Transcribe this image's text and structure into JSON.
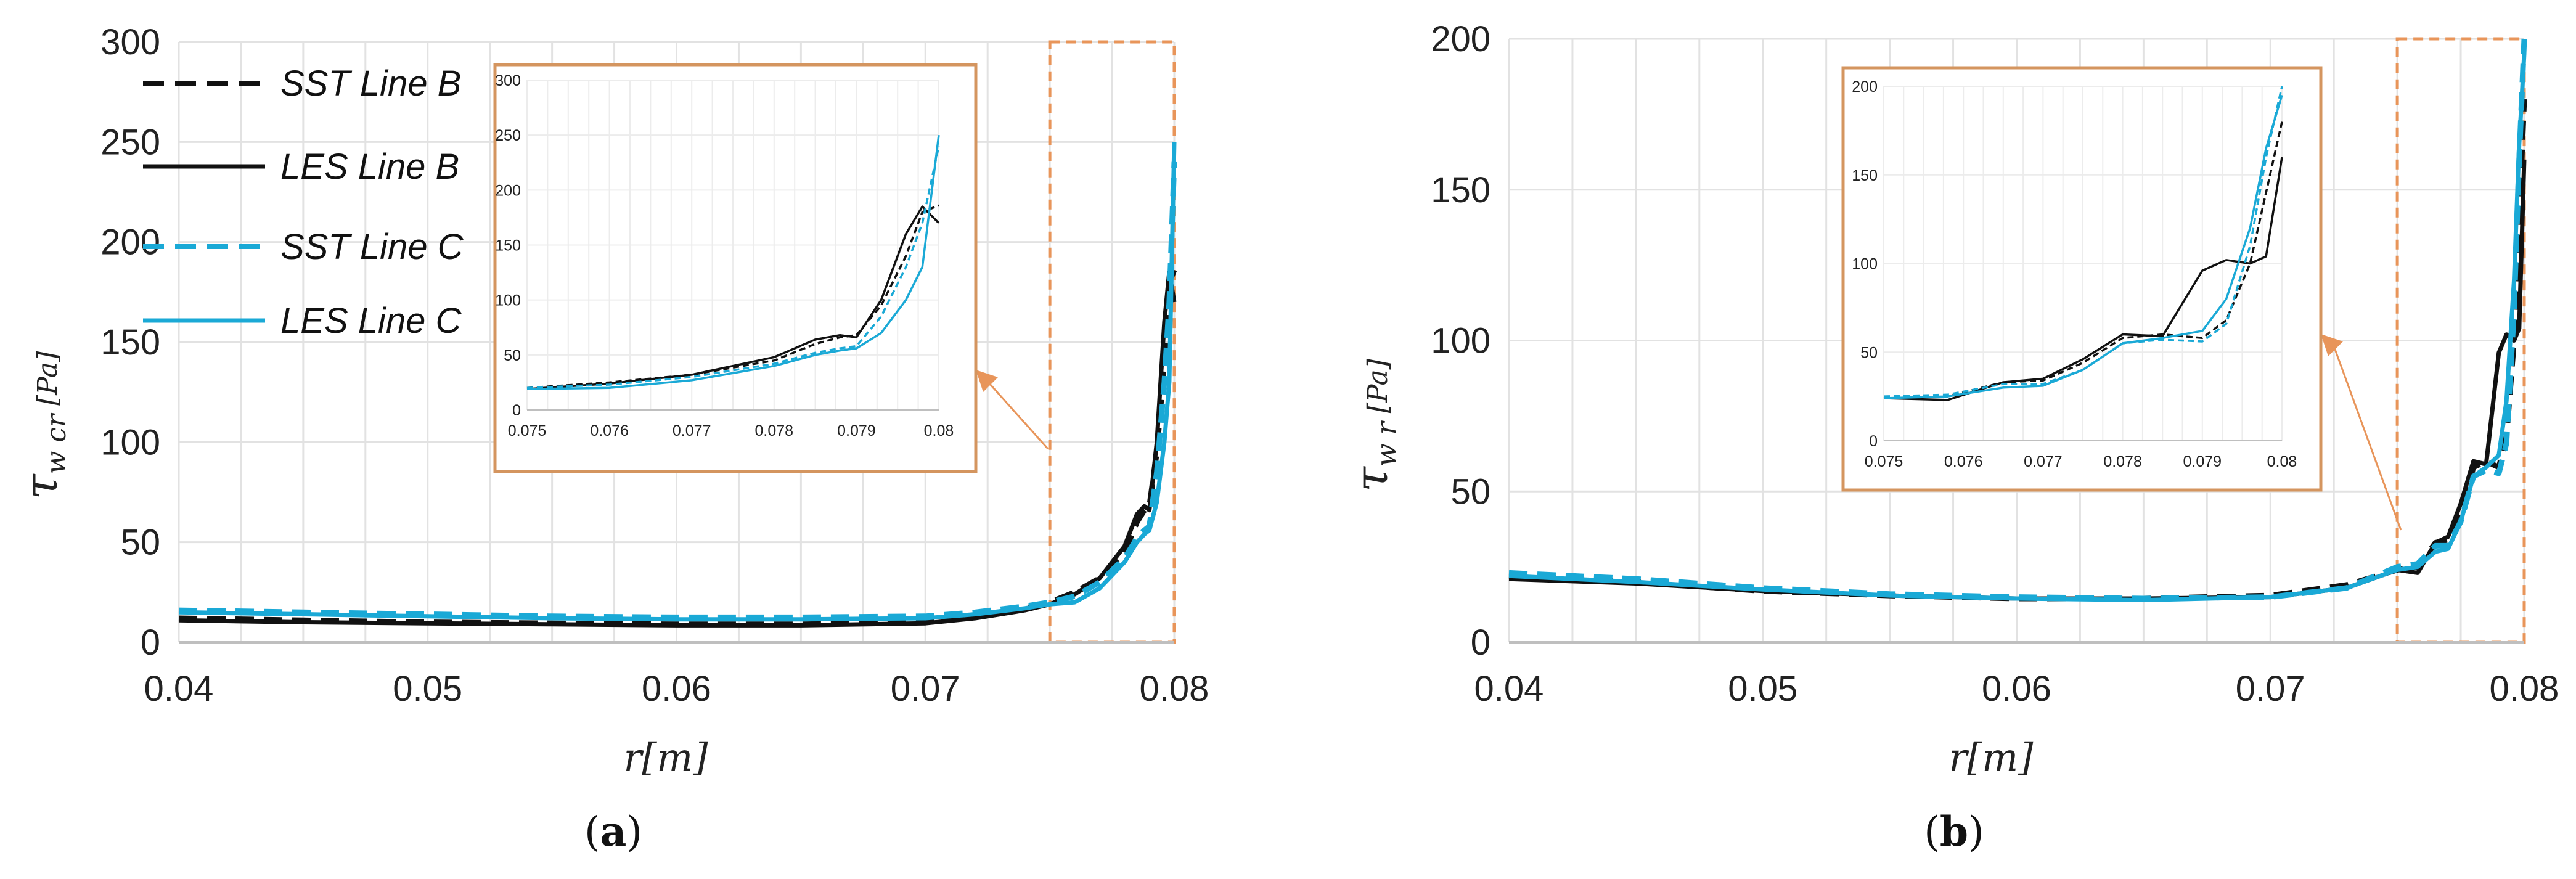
{
  "chart_data": [
    {
      "type": "line",
      "panel_label": "a",
      "xlabel": "r[m]",
      "ylabel": "τ",
      "ylabel_sub": "w cr",
      "ylabel_unit": "[Pa]",
      "xlim": [
        0.04,
        0.08
      ],
      "ylim": [
        0,
        300
      ],
      "x_ticks": [
        "0.04",
        "0.05",
        "0.06",
        "0.07",
        "0.08"
      ],
      "y_ticks": [
        "0",
        "50",
        "100",
        "150",
        "200",
        "250",
        "300"
      ],
      "grid": true,
      "legend_position": "top-left",
      "zoom_region": {
        "x": [
          0.075,
          0.08
        ],
        "y": [
          0,
          300
        ]
      },
      "series": [
        {
          "name": "SST Line B",
          "color": "#111111",
          "dash": "dashed",
          "x": [
            0.04,
            0.045,
            0.05,
            0.055,
            0.06,
            0.065,
            0.07,
            0.072,
            0.074,
            0.075,
            0.076,
            0.077,
            0.078,
            0.0785,
            0.0788,
            0.079,
            0.0793,
            0.0796,
            0.0798,
            0.08
          ],
          "y": [
            12,
            11,
            10,
            9.5,
            9,
            9,
            10,
            13,
            17,
            20,
            25,
            32,
            45,
            60,
            66,
            68,
            95,
            140,
            180,
            186
          ]
        },
        {
          "name": "LES Line B",
          "color": "#111111",
          "dash": "solid",
          "x": [
            0.04,
            0.045,
            0.05,
            0.055,
            0.06,
            0.065,
            0.07,
            0.072,
            0.074,
            0.075,
            0.076,
            0.077,
            0.078,
            0.0785,
            0.0788,
            0.079,
            0.0793,
            0.0796,
            0.0798,
            0.08
          ],
          "y": [
            11,
            10,
            9.5,
            9,
            8.5,
            8.5,
            9.5,
            12,
            16,
            19,
            24,
            32,
            48,
            64,
            68,
            66,
            100,
            160,
            185,
            170
          ]
        },
        {
          "name": "SST Line C",
          "color": "#1aa9d6",
          "dash": "dashed",
          "x": [
            0.04,
            0.045,
            0.05,
            0.055,
            0.06,
            0.065,
            0.07,
            0.072,
            0.074,
            0.075,
            0.076,
            0.077,
            0.078,
            0.0785,
            0.0788,
            0.079,
            0.0793,
            0.0796,
            0.0798,
            0.08
          ],
          "y": [
            16,
            15,
            14,
            13,
            12.5,
            12.5,
            13,
            15,
            18,
            20,
            23,
            30,
            42,
            52,
            56,
            58,
            85,
            130,
            170,
            240
          ]
        },
        {
          "name": "LES Line C",
          "color": "#1aa9d6",
          "dash": "solid",
          "x": [
            0.04,
            0.045,
            0.05,
            0.055,
            0.06,
            0.065,
            0.07,
            0.072,
            0.074,
            0.075,
            0.076,
            0.077,
            0.078,
            0.0785,
            0.0788,
            0.079,
            0.0793,
            0.0796,
            0.0798,
            0.08
          ],
          "y": [
            15,
            14,
            13,
            12,
            11.5,
            11.5,
            12,
            14,
            17,
            19,
            20,
            27,
            40,
            50,
            54,
            56,
            70,
            100,
            130,
            250
          ]
        }
      ],
      "inset": {
        "xlim": [
          0.075,
          0.08
        ],
        "ylim": [
          0,
          300
        ],
        "x_ticks": [
          "0.075",
          "0.076",
          "0.077",
          "0.078",
          "0.079",
          "0.08"
        ],
        "y_ticks": [
          "0",
          "50",
          "100",
          "150",
          "200",
          "250",
          "300"
        ]
      }
    },
    {
      "type": "line",
      "panel_label": "b",
      "xlabel": "r[m]",
      "ylabel": "τ",
      "ylabel_sub": "w r",
      "ylabel_unit": "[Pa]",
      "xlim": [
        0.04,
        0.08
      ],
      "ylim": [
        0,
        200
      ],
      "x_ticks": [
        "0.04",
        "0.05",
        "0.06",
        "0.07",
        "0.08"
      ],
      "y_ticks": [
        "0",
        "50",
        "100",
        "150",
        "200"
      ],
      "grid": true,
      "zoom_region": {
        "x": [
          0.075,
          0.08
        ],
        "y": [
          0,
          200
        ]
      },
      "series": [
        {
          "name": "SST Line B",
          "color": "#111111",
          "dash": "dashed",
          "x": [
            0.04,
            0.045,
            0.05,
            0.055,
            0.06,
            0.065,
            0.07,
            0.073,
            0.075,
            0.0758,
            0.0765,
            0.077,
            0.0775,
            0.078,
            0.0785,
            0.079,
            0.0793,
            0.0796,
            0.0798,
            0.08
          ],
          "y": [
            22,
            20,
            17,
            15.5,
            14.5,
            14.5,
            15.5,
            19,
            24,
            25,
            33,
            34,
            44,
            58,
            60,
            58,
            68,
            100,
            140,
            180
          ]
        },
        {
          "name": "LES Line B",
          "color": "#111111",
          "dash": "solid",
          "x": [
            0.04,
            0.045,
            0.05,
            0.055,
            0.06,
            0.065,
            0.07,
            0.073,
            0.075,
            0.0758,
            0.0765,
            0.077,
            0.0775,
            0.078,
            0.0785,
            0.079,
            0.0793,
            0.0796,
            0.0798,
            0.08
          ],
          "y": [
            21,
            19.5,
            17,
            15.5,
            14.5,
            14.5,
            15,
            18,
            24,
            23,
            33,
            35,
            46,
            60,
            59,
            96,
            102,
            100,
            104,
            160
          ]
        },
        {
          "name": "SST Line C",
          "color": "#1aa9d6",
          "dash": "dashed",
          "x": [
            0.04,
            0.045,
            0.05,
            0.055,
            0.06,
            0.065,
            0.07,
            0.073,
            0.075,
            0.0758,
            0.0765,
            0.077,
            0.0775,
            0.078,
            0.0785,
            0.079,
            0.0793,
            0.0796,
            0.0798,
            0.08
          ],
          "y": [
            23,
            21,
            18,
            16,
            15,
            14.5,
            15,
            18,
            25,
            26,
            32,
            32,
            40,
            55,
            57,
            56,
            66,
            110,
            160,
            200
          ]
        },
        {
          "name": "LES Line C",
          "color": "#1aa9d6",
          "dash": "solid",
          "x": [
            0.04,
            0.045,
            0.05,
            0.055,
            0.06,
            0.065,
            0.07,
            0.073,
            0.075,
            0.0758,
            0.0765,
            0.077,
            0.0775,
            0.078,
            0.0785,
            0.079,
            0.0793,
            0.0796,
            0.0798,
            0.08
          ],
          "y": [
            22,
            20,
            17.5,
            15.5,
            14.5,
            14,
            15,
            18,
            24,
            25,
            30,
            31,
            40,
            55,
            58,
            62,
            80,
            120,
            165,
            195
          ]
        }
      ],
      "inset": {
        "xlim": [
          0.075,
          0.08
        ],
        "ylim": [
          0,
          200
        ],
        "x_ticks": [
          "0.075",
          "0.076",
          "0.077",
          "0.078",
          "0.079",
          "0.08"
        ],
        "y_ticks": [
          "0",
          "50",
          "100",
          "150",
          "200"
        ]
      }
    }
  ]
}
